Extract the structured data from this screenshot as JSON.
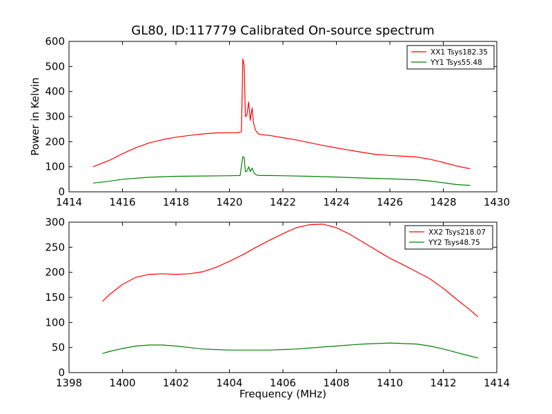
{
  "title": "GL80, ID:117779 Calibrated On-source spectrum",
  "chart_data": [
    {
      "type": "line",
      "xlim": [
        1414,
        1430
      ],
      "ylim": [
        0,
        600
      ],
      "xticks": [
        1414,
        1416,
        1418,
        1420,
        1422,
        1424,
        1426,
        1428,
        1430
      ],
      "yticks": [
        0,
        100,
        200,
        300,
        400,
        500,
        600
      ],
      "xlabel": "",
      "ylabel": "Power in Kelvin",
      "grid": false,
      "legend_position": "top-right",
      "series": [
        {
          "name": "XX1 Tsys182.35",
          "color": "#ff0000",
          "x": [
            1414.9,
            1415.5,
            1416.0,
            1416.5,
            1417.0,
            1417.5,
            1418.0,
            1418.5,
            1419.0,
            1419.5,
            1420.0,
            1420.3,
            1420.45,
            1420.5,
            1420.55,
            1420.6,
            1420.65,
            1420.72,
            1420.78,
            1420.85,
            1420.9,
            1420.98,
            1421.05,
            1421.1,
            1421.2,
            1421.5,
            1422.0,
            1422.5,
            1423.0,
            1423.5,
            1424.0,
            1424.5,
            1425.0,
            1425.5,
            1426.0,
            1426.5,
            1427.0,
            1427.5,
            1428.0,
            1428.5,
            1429.0
          ],
          "y": [
            100,
            125,
            152,
            176,
            195,
            208,
            218,
            225,
            231,
            235,
            236,
            236,
            240,
            530,
            505,
            300,
            305,
            358,
            285,
            335,
            275,
            245,
            236,
            230,
            228,
            225,
            216,
            207,
            196,
            185,
            175,
            166,
            157,
            149,
            145,
            142,
            139,
            130,
            117,
            103,
            92
          ]
        },
        {
          "name": "YY1 Tsys55.48",
          "color": "#008000",
          "x": [
            1414.9,
            1415.5,
            1416.0,
            1417.0,
            1418.0,
            1419.0,
            1420.0,
            1420.4,
            1420.5,
            1420.55,
            1420.6,
            1420.65,
            1420.72,
            1420.78,
            1420.85,
            1420.92,
            1421.0,
            1421.1,
            1421.5,
            1422.0,
            1423.0,
            1424.0,
            1425.0,
            1426.0,
            1427.0,
            1427.5,
            1428.0,
            1428.5,
            1429.0
          ],
          "y": [
            35,
            42,
            50,
            58,
            62,
            63,
            64,
            65,
            140,
            138,
            80,
            82,
            100,
            80,
            95,
            75,
            68,
            65,
            65,
            64,
            62,
            59,
            55,
            52,
            48,
            43,
            36,
            29,
            26
          ]
        }
      ]
    },
    {
      "type": "line",
      "xlim": [
        1398,
        1414
      ],
      "ylim": [
        0,
        300
      ],
      "xticks": [
        1398,
        1400,
        1402,
        1404,
        1406,
        1408,
        1410,
        1412,
        1414
      ],
      "yticks": [
        0,
        50,
        100,
        150,
        200,
        250,
        300
      ],
      "xlabel": "Frequency (MHz)",
      "ylabel": "",
      "grid": false,
      "legend_position": "top-right",
      "series": [
        {
          "name": "XX2 Tsys218.07",
          "color": "#ff0000",
          "x": [
            1399.25,
            1399.5,
            1400.0,
            1400.5,
            1401.0,
            1401.5,
            1402.0,
            1402.5,
            1403.0,
            1403.5,
            1404.0,
            1404.5,
            1405.0,
            1405.5,
            1406.0,
            1406.5,
            1407.0,
            1407.5,
            1408.0,
            1408.5,
            1409.0,
            1409.5,
            1410.0,
            1410.5,
            1411.0,
            1411.5,
            1412.0,
            1412.5,
            1413.0,
            1413.3
          ],
          "y": [
            142,
            155,
            176,
            190,
            196,
            197,
            196,
            197,
            201,
            210,
            222,
            235,
            250,
            264,
            277,
            289,
            295,
            296,
            289,
            276,
            260,
            244,
            228,
            215,
            201,
            187,
            168,
            146,
            125,
            111
          ]
        },
        {
          "name": "YY2 Tsys48.75",
          "color": "#008000",
          "x": [
            1399.25,
            1399.5,
            1400.0,
            1400.5,
            1401.0,
            1401.5,
            1402.0,
            1402.5,
            1403.0,
            1403.5,
            1404.0,
            1404.5,
            1405.0,
            1405.5,
            1406.0,
            1406.5,
            1407.0,
            1407.5,
            1408.0,
            1408.5,
            1409.0,
            1409.5,
            1410.0,
            1410.5,
            1411.0,
            1411.5,
            1412.0,
            1412.5,
            1413.0,
            1413.3
          ],
          "y": [
            38,
            42,
            48,
            53,
            55,
            55,
            53,
            50,
            47,
            46,
            45,
            45,
            45,
            45,
            46,
            47,
            49,
            51,
            53,
            55,
            57,
            58,
            59,
            58,
            57,
            53,
            47,
            40,
            33,
            29
          ]
        }
      ]
    }
  ]
}
